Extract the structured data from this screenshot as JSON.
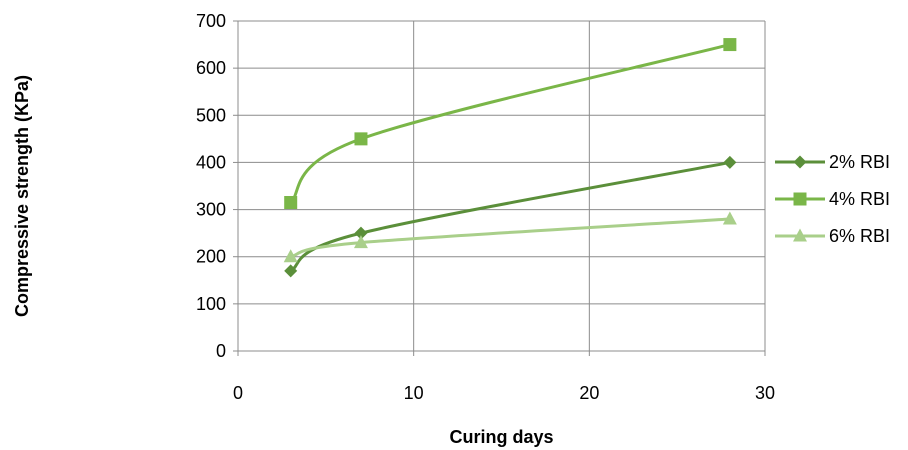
{
  "chart_data": {
    "type": "line",
    "xlabel": "Curing days",
    "ylabel": "Compressive strength (KPa)",
    "xlim": [
      0,
      30
    ],
    "ylim": [
      0,
      700
    ],
    "xticks": [
      0,
      10,
      20,
      30
    ],
    "yticks": [
      0,
      100,
      200,
      300,
      400,
      500,
      600,
      700
    ],
    "grid": true,
    "legend_position": "right",
    "series": [
      {
        "name": "2% RBI",
        "marker": "diamond",
        "color": "#5b8f3a",
        "points": [
          [
            3,
            170
          ],
          [
            7,
            250
          ],
          [
            28,
            400
          ]
        ]
      },
      {
        "name": "4% RBI",
        "marker": "square",
        "color": "#7ab648",
        "points": [
          [
            3,
            315
          ],
          [
            7,
            450
          ],
          [
            28,
            650
          ]
        ]
      },
      {
        "name": "6% RBI",
        "marker": "triangle",
        "color": "#a9cf8a",
        "points": [
          [
            3,
            200
          ],
          [
            7,
            230
          ],
          [
            28,
            280
          ]
        ]
      }
    ]
  }
}
